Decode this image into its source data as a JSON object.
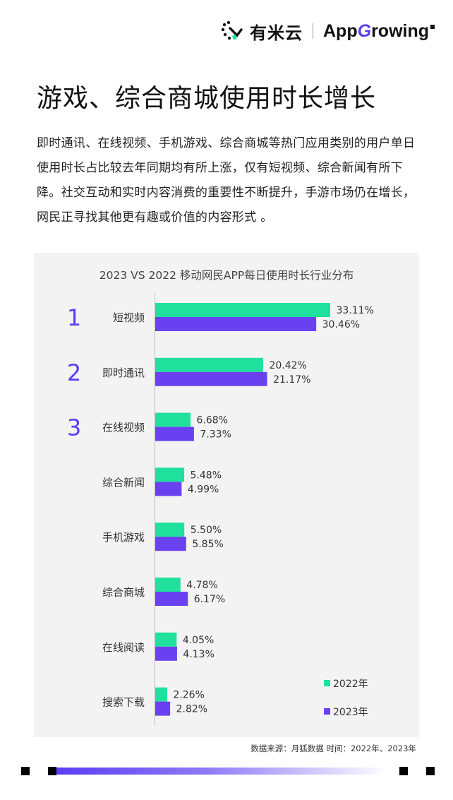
{
  "header": {
    "brand_cn": "有米云",
    "brand_en_prefix": "App",
    "brand_en_g": "G",
    "brand_en_suffix": "rowing"
  },
  "page_title": "游戏、综合商城使用时长增长",
  "intro_text": "即时通讯、在线视频、手机游戏、综合商城等热门应用类别的用户单日使用时长占比较去年同期均有所上涨，仅有短视频、综合新闻有所下降。社交互动和实时内容消费的重要性不断提升，手游市场仍在增长，网民正寻找其他更有趣或价值的内容形式 。",
  "colors": {
    "series_2022": "#1fe09c",
    "series_2023": "#6a41f0",
    "rank_color": "#5b3df5",
    "panel_bg": "#f3f3f3"
  },
  "chart_data": {
    "type": "bar",
    "orientation": "horizontal",
    "title": "2023 VS 2022 移动网民APP每日使用时长行业分布",
    "categories": [
      "短视频",
      "即时通讯",
      "在线视频",
      "综合新闻",
      "手机游戏",
      "综合商城",
      "在线阅读",
      "搜索下载"
    ],
    "ranks": [
      "1",
      "2",
      "3"
    ],
    "series": [
      {
        "name": "2022年",
        "values": [
          33.11,
          20.42,
          6.68,
          5.48,
          5.5,
          4.78,
          4.05,
          2.26
        ]
      },
      {
        "name": "2023年",
        "values": [
          30.46,
          21.17,
          7.33,
          4.99,
          5.85,
          6.17,
          4.13,
          2.82
        ]
      }
    ],
    "value_suffix": "%",
    "xlim": [
      0,
      33.11
    ],
    "grid": false,
    "legend_position": "bottom-right"
  },
  "source_note": "数据来源：月狐数据 时间：2022年、2023年"
}
